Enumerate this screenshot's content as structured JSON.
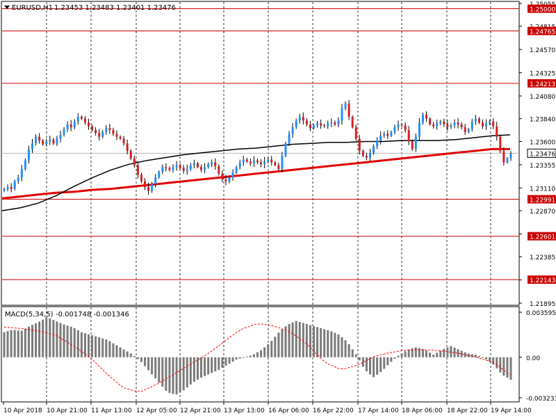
{
  "header": {
    "symbol": "EURUSD,H1",
    "ohlc": "1.23453 1.23483 1.23401 1.23476"
  },
  "colors": {
    "up": "#1e90ff",
    "down": "#d81e1e",
    "wick": "#000000",
    "ma_fast": "#e00000",
    "ma_slow": "#000000",
    "level_line": "#cc0000",
    "price_box": "#ffffff",
    "histogram": "#7a7a7a",
    "signal": "#ff0000"
  },
  "chart_data": [
    {
      "type": "candlestick",
      "title": "EURUSD,H1",
      "ylim": [
        1.21895,
        1.25055
      ],
      "y_ticks": [
        "1.25055",
        "1.24815",
        "1.24570",
        "1.24325",
        "1.24080",
        "1.23840",
        "1.23600",
        "1.23355",
        "1.23110",
        "1.22870",
        "1.22625",
        "1.22385",
        "1.22140",
        "1.21895"
      ],
      "grid": true,
      "x_labels": [
        "10 Apr 2018",
        "10 Apr 21:00",
        "11 Apr 13:00",
        "12 Apr 05:00",
        "12 Apr 21:00",
        "13 Apr 13:00",
        "16 Apr 06:00",
        "16 Apr 22:00",
        "17 Apr 14:00",
        "18 Apr 06:00",
        "18 Apr 22:00",
        "19 Apr 14:00"
      ],
      "current_price": "1.23476",
      "levels": [
        "1.25000",
        "1.24765",
        "1.24213",
        "1.22991",
        "1.22601",
        "1.22143"
      ],
      "close_path": [
        1.231,
        1.2312,
        1.231,
        1.2318,
        1.2322,
        1.2331,
        1.234,
        1.2352,
        1.2358,
        1.2365,
        1.2361,
        1.2357,
        1.236,
        1.2362,
        1.2358,
        1.2363,
        1.2367,
        1.2373,
        1.2378,
        1.2375,
        1.2381,
        1.2386,
        1.2384,
        1.238,
        1.2376,
        1.2372,
        1.2369,
        1.2365,
        1.237,
        1.2374,
        1.2372,
        1.2368,
        1.2365,
        1.2363,
        1.2358,
        1.235,
        1.2342,
        1.2335,
        1.2325,
        1.2318,
        1.2312,
        1.2308,
        1.2315,
        1.2322,
        1.2328,
        1.2333,
        1.2332,
        1.233,
        1.2333,
        1.2335,
        1.2332,
        1.2329,
        1.2331,
        1.2335,
        1.2337,
        1.2333,
        1.233,
        1.2333,
        1.2336,
        1.2338,
        1.2334,
        1.2326,
        1.232,
        1.2318,
        1.2322,
        1.2327,
        1.2333,
        1.2338,
        1.2341,
        1.2339,
        1.2337,
        1.234,
        1.2338,
        1.2336,
        1.2339,
        1.2341,
        1.2338,
        1.2335,
        1.2331,
        1.2345,
        1.2358,
        1.2368,
        1.2375,
        1.2382,
        1.2386,
        1.2382,
        1.2378,
        1.2374,
        1.2377,
        1.2379,
        1.2377,
        1.2376,
        1.2379,
        1.238,
        1.2378,
        1.2382,
        1.2395,
        1.24,
        1.2386,
        1.2375,
        1.2363,
        1.235,
        1.2345,
        1.2343,
        1.2348,
        1.2355,
        1.2361,
        1.2366,
        1.2368,
        1.2366,
        1.237,
        1.2375,
        1.2378,
        1.2377,
        1.2372,
        1.236,
        1.2352,
        1.2365,
        1.238,
        1.2388,
        1.2384,
        1.2378,
        1.2376,
        1.2379,
        1.2381,
        1.2378,
        1.2375,
        1.2377,
        1.238,
        1.2378,
        1.2375,
        1.237,
        1.2373,
        1.2381,
        1.2384,
        1.238,
        1.2376,
        1.2379,
        1.2381,
        1.2376,
        1.2365,
        1.235,
        1.2338,
        1.2342,
        1.2347
      ],
      "series": [
        {
          "values": [
            1.23,
            1.2302,
            1.2304,
            1.2306,
            1.2307,
            1.2309,
            1.231,
            1.2312,
            1.2314,
            1.2316,
            1.2318,
            1.232,
            1.2322,
            1.2324,
            1.2326,
            1.2328,
            1.233,
            1.2332,
            1.2334,
            1.2336,
            1.2338,
            1.234,
            1.2342,
            1.2344,
            1.2346,
            1.2348,
            1.235,
            1.2352,
            1.2352
          ]
        },
        {
          "values": [
            1.2287,
            1.229,
            1.2295,
            1.2303,
            1.2313,
            1.2322,
            1.233,
            1.2336,
            1.234,
            1.2343,
            1.2346,
            1.2348,
            1.235,
            1.2352,
            1.2353,
            1.2355,
            1.2357,
            1.2358,
            1.2359,
            1.2359,
            1.236,
            1.236,
            1.2361,
            1.2361,
            1.2361,
            1.2362,
            1.2364,
            1.2366,
            1.2367
          ]
        }
      ]
    },
    {
      "type": "bar",
      "title": "MACD(5,34,5)",
      "value_label": "-0.001748 -0.001346",
      "y_ticks": [
        "0.003595",
        "0.00",
        "-0.003233"
      ],
      "ylim": [
        -0.003233,
        0.003595
      ],
      "series": [
        {
          "values": [
            0.002,
            0.0022,
            0.0021,
            0.0025,
            0.0028,
            0.0032,
            0.0029,
            0.0026,
            0.0024,
            0.002,
            0.0018,
            0.0016,
            0.0014,
            0.001,
            0.0006,
            0.0002,
            -0.0004,
            -0.0012,
            -0.002,
            -0.0028,
            -0.003,
            -0.0026,
            -0.002,
            -0.0016,
            -0.0013,
            -0.001,
            -0.0006,
            -0.0002,
            0.0,
            0.0002,
            0.0006,
            0.0012,
            0.002,
            0.0026,
            0.0029,
            0.0027,
            0.0025,
            0.0023,
            0.0021,
            0.0018,
            0.0012,
            0.0002,
            -0.001,
            -0.0016,
            -0.0011,
            -0.0004,
            0.0002,
            0.0006,
            0.0008,
            0.0006,
            0.0002,
            0.0006,
            0.0009,
            0.0006,
            0.0003,
            0.0002,
            -0.0001,
            -0.0006,
            -0.0014,
            -0.0018
          ]
        },
        {
          "values": [
            0.0024,
            0.0023,
            0.0021,
            0.0018,
            0.001,
            0.0001,
            -0.0012,
            -0.0024,
            -0.0028,
            -0.0022,
            -0.0014,
            -0.0006,
            0.0002,
            0.0012,
            0.0022,
            0.0027,
            0.0025,
            0.002,
            0.001,
            -0.0004,
            -0.001,
            -0.0006,
            0.0001,
            0.0004,
            0.0006,
            0.0006,
            0.0005,
            0.0003,
            0.0,
            -0.0004,
            -0.0014
          ]
        }
      ]
    }
  ]
}
